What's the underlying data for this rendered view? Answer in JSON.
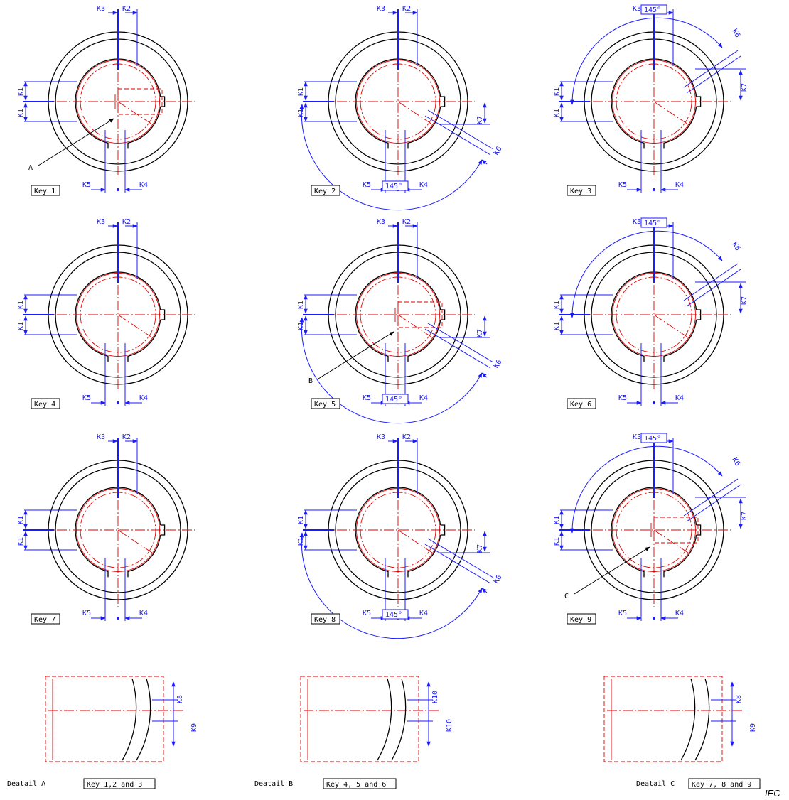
{
  "keys": [
    {
      "label": "Key 1",
      "angle": false,
      "pointer": "A",
      "hidden": "A"
    },
    {
      "label": "Key 2",
      "angle": true,
      "pointer": "",
      "hidden": ""
    },
    {
      "label": "Key 3",
      "angle": true,
      "pointer": "",
      "hidden": ""
    },
    {
      "label": "Key 4",
      "angle": false,
      "pointer": "",
      "hidden": ""
    },
    {
      "label": "Key 5",
      "angle": true,
      "pointer": "B",
      "hidden": "B"
    },
    {
      "label": "Key 6",
      "angle": true,
      "pointer": "",
      "hidden": ""
    },
    {
      "label": "Key 7",
      "angle": false,
      "pointer": "",
      "hidden": ""
    },
    {
      "label": "Key 8",
      "angle": true,
      "pointer": "",
      "hidden": ""
    },
    {
      "label": "Key 9",
      "angle": true,
      "pointer": "C",
      "hidden": "C"
    }
  ],
  "dims": {
    "k1": "K1",
    "k2": "K2",
    "k3": "K3",
    "k4": "K4",
    "k5": "K5",
    "k6": "K6",
    "k7": "K7",
    "k8": "K8",
    "k9": "K9",
    "k10": "K10",
    "angle": "145°"
  },
  "details": [
    {
      "title": "Deatail A",
      "keys": "Key 1,2 and 3"
    },
    {
      "title": "Deatail B",
      "keys": "Key 4, 5 and 6"
    },
    {
      "title": "Deatail C",
      "keys": "Key 7, 8 and 9"
    }
  ],
  "footer": "IEC",
  "colors": {
    "outline": "#000000",
    "centerline": "#e00000",
    "dimension": "#1a1aff"
  }
}
